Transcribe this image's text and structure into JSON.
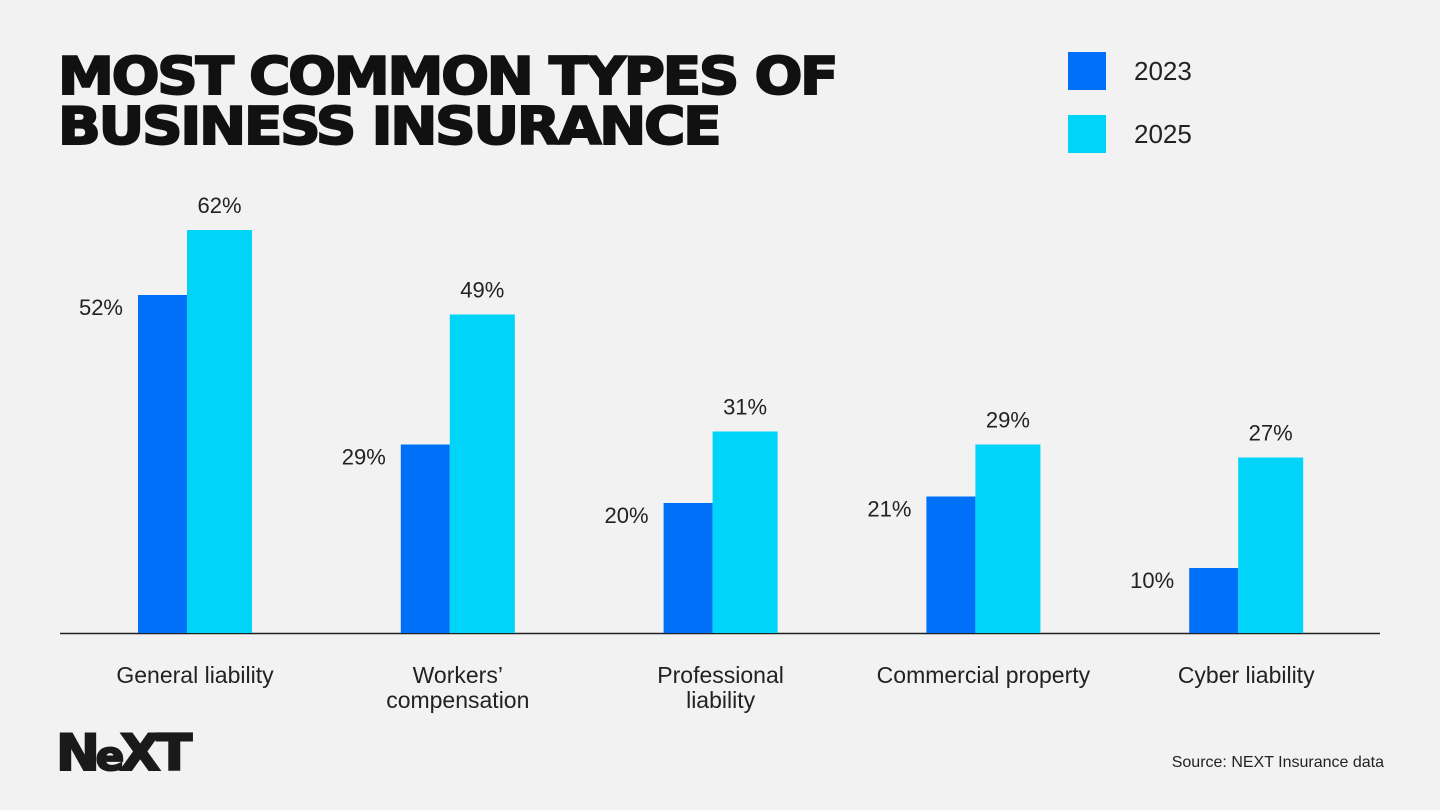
{
  "chart_data": {
    "type": "bar",
    "title": "MOST COMMON TYPES OF BUSINESS INSURANCE",
    "title_lines": [
      "MOST COMMON TYPES OF",
      "BUSINESS INSURANCE"
    ],
    "categories": [
      "General liability",
      "Workers’ compensation",
      "Professional liability",
      "Commercial property",
      "Cyber liability"
    ],
    "category_lines": [
      [
        "General liability"
      ],
      [
        "Workers’",
        "compensation"
      ],
      [
        "Professional",
        "liability"
      ],
      [
        "Commercial property"
      ],
      [
        "Cyber liability"
      ]
    ],
    "series": [
      {
        "name": "2023",
        "color": "#0070f8",
        "values": [
          52,
          29,
          20,
          21,
          10
        ],
        "labels": [
          "52%",
          "29%",
          "20%",
          "21%",
          "10%"
        ]
      },
      {
        "name": "2025",
        "color": "#00d4f8",
        "values": [
          62,
          49,
          31,
          29,
          27
        ],
        "labels": [
          "62%",
          "49%",
          "31%",
          "29%",
          "27%"
        ]
      }
    ],
    "unit": "%",
    "ylim": [
      0,
      62
    ],
    "grid": false,
    "legend_placement": "top-right"
  },
  "logo": "NEXT",
  "source": "Source: NEXT Insurance data"
}
